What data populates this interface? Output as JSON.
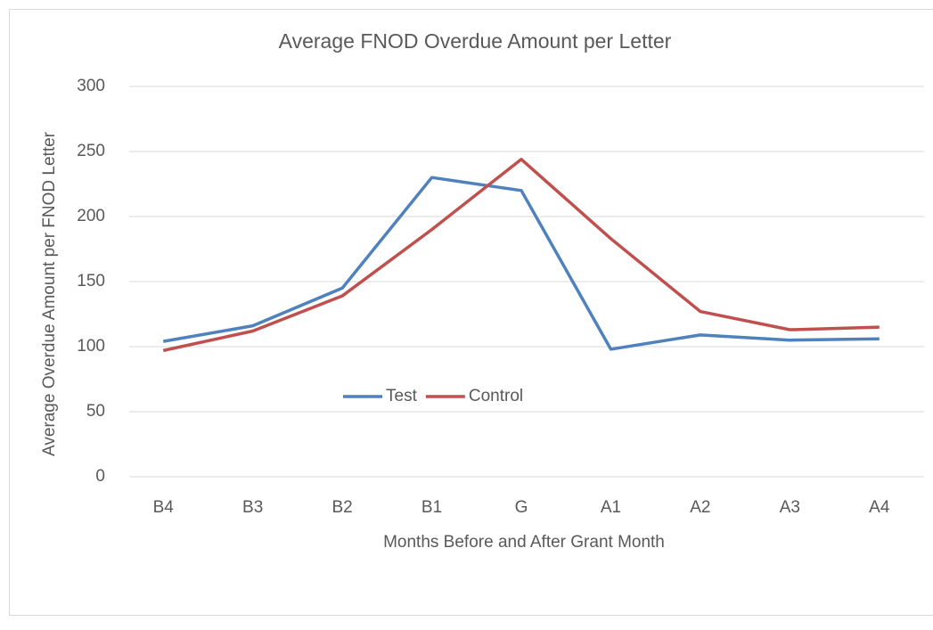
{
  "chart_data": {
    "type": "line",
    "title": "Average FNOD Overdue Amount per Letter",
    "x_label": "Months Before and After Grant Month",
    "y_label": "Average Overdue Amount per FNOD Letter",
    "categories": [
      "B4",
      "B3",
      "B2",
      "B1",
      "G",
      "A1",
      "A2",
      "A3",
      "A4"
    ],
    "series": [
      {
        "name": "Test",
        "color": "#4f81bd",
        "values": [
          104,
          116,
          145,
          230,
          220,
          98,
          109,
          105,
          106
        ]
      },
      {
        "name": "Control",
        "color": "#c0504d",
        "values": [
          97,
          112,
          139,
          190,
          244,
          183,
          127,
          113,
          115
        ]
      }
    ],
    "ylim": [
      0,
      300
    ],
    "yticks": [
      0,
      50,
      100,
      150,
      200,
      250,
      300
    ],
    "grid": true
  }
}
